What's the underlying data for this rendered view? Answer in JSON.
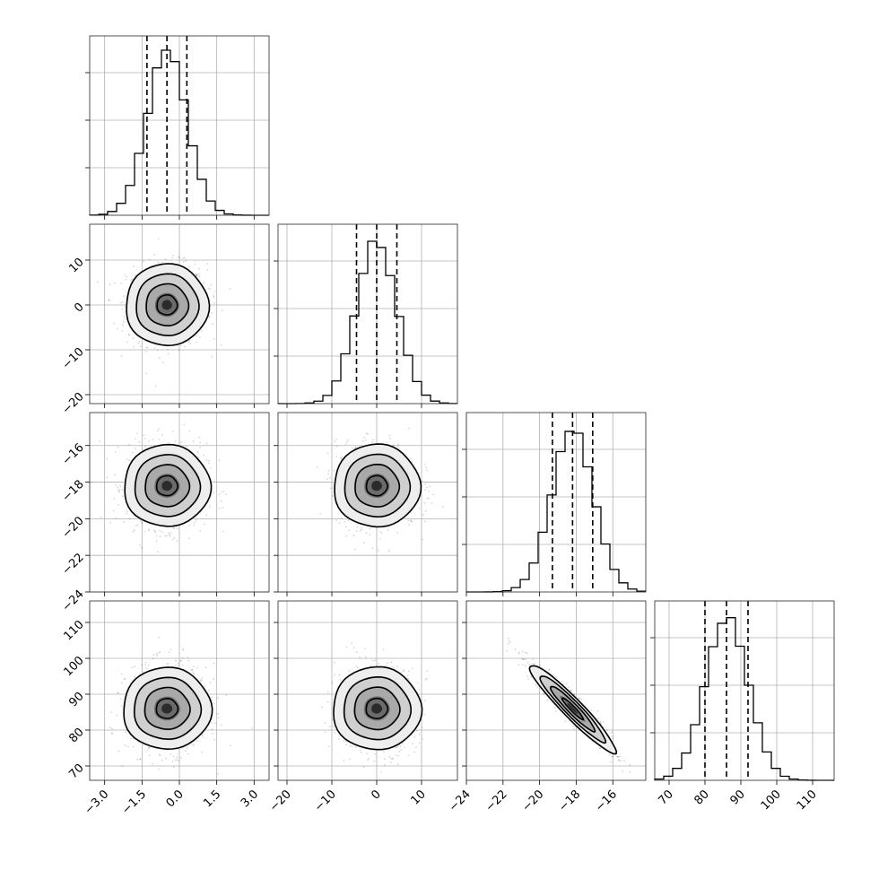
{
  "chart_data": {
    "type": "corner",
    "title": "",
    "grid": true,
    "parameters": [
      {
        "index": 0,
        "label": "",
        "range": [
          -3.6,
          3.6
        ],
        "ticks": [
          -3.0,
          -1.5,
          0.0,
          1.5,
          3.0
        ],
        "tick_labels": [
          "−3.0",
          "−1.5",
          "0.0",
          "1.5",
          "3.0"
        ],
        "mean": -0.5,
        "sigma": 0.8,
        "quantiles": [
          -1.3,
          -0.5,
          0.3
        ]
      },
      {
        "index": 1,
        "label": "",
        "range": [
          -22,
          18
        ],
        "ticks": [
          -20,
          -10,
          0,
          10
        ],
        "tick_labels": [
          "−20",
          "−10",
          "0",
          "10"
        ],
        "mean": 0,
        "sigma": 4.5,
        "quantiles": [
          -4.5,
          0,
          4.5
        ]
      },
      {
        "index": 2,
        "label": "",
        "range": [
          -24,
          -14.2
        ],
        "ticks": [
          -24,
          -22,
          -20,
          -18,
          -16
        ],
        "tick_labels": [
          "−24",
          "−22",
          "−20",
          "−18",
          "−16"
        ],
        "mean": -18.2,
        "sigma": 1.15,
        "quantiles": [
          -19.3,
          -18.2,
          -17.1
        ]
      },
      {
        "index": 3,
        "label": "",
        "range": [
          66,
          116
        ],
        "ticks": [
          70,
          80,
          90,
          100,
          110
        ],
        "tick_labels": [
          "70",
          "80",
          "90",
          "100",
          "110"
        ],
        "mean": 86,
        "sigma": 6,
        "quantiles": [
          80,
          86,
          92
        ]
      }
    ],
    "correlations": {
      "0-1": 0.0,
      "0-2": 0.0,
      "1-2": 0.0,
      "0-3": 0.0,
      "1-3": 0.0,
      "2-3": -0.95
    }
  }
}
